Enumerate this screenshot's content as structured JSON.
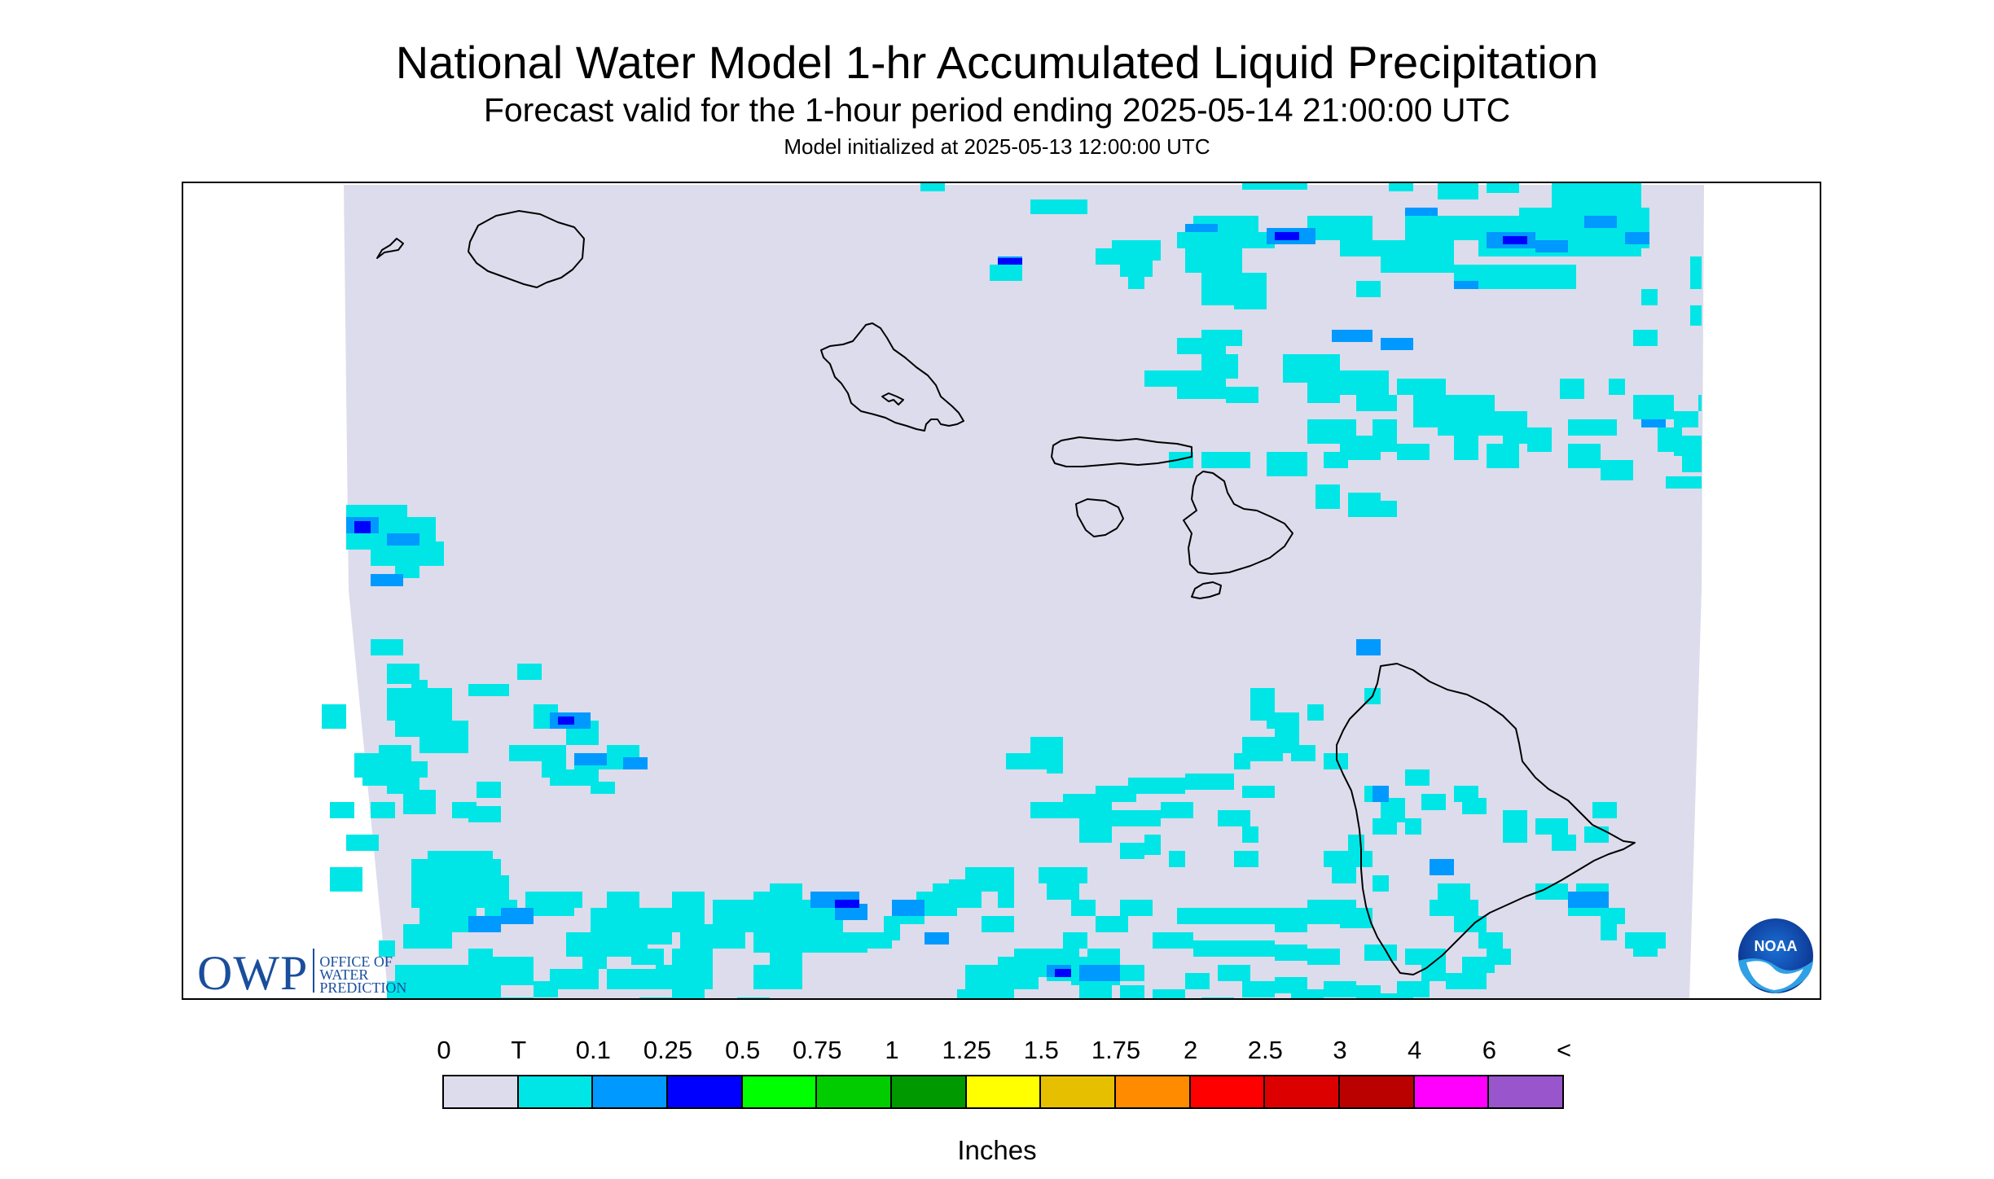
{
  "header": {
    "title": "National Water Model 1-hr Accumulated Liquid Precipitation",
    "subtitle": "Forecast valid for the 1-hour period ending 2025-05-14 21:00:00 UTC",
    "init_line": "Model initialized at 2025-05-13 12:00:00 UTC"
  },
  "map": {
    "background_color": "#dcdcec",
    "coastline_color": "#000000",
    "precip_colors": {
      "trace": "#00e6e6",
      "light": "#0099ff",
      "moderate": "#0000ff"
    }
  },
  "logos": {
    "owp": {
      "letters": "OWP",
      "line1": "OFFICE OF",
      "line2": "WATER",
      "line3": "PREDICTION"
    },
    "noaa": {
      "text": "NOAA"
    }
  },
  "legend": {
    "tick_labels": [
      "0",
      "T",
      "0.1",
      "0.25",
      "0.5",
      "0.75",
      "1",
      "1.25",
      "1.5",
      "1.75",
      "2",
      "2.5",
      "3",
      "4",
      "6",
      "<"
    ],
    "colors": [
      "#dcdcec",
      "#00e6e6",
      "#0099ff",
      "#0000ff",
      "#00ff00",
      "#00cc00",
      "#009900",
      "#ffff00",
      "#e6c000",
      "#ff8c00",
      "#ff0000",
      "#dd0000",
      "#bb0000",
      "#ff00ff",
      "#9955cc"
    ],
    "units": "Inches"
  }
}
